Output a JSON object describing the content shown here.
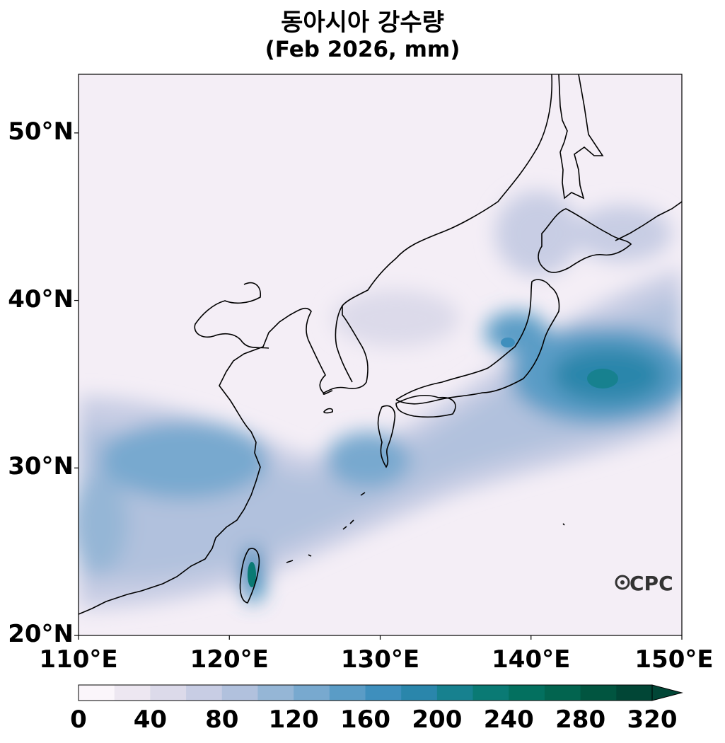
{
  "title": "동아시아 강수량",
  "subtitle": "(Feb 2026, mm)",
  "watermark": "CPC",
  "map": {
    "lon_range": [
      110,
      150
    ],
    "lat_range": [
      20,
      53.5
    ],
    "lat_ticks": [
      {
        "value": 50,
        "label": "50°N"
      },
      {
        "value": 40,
        "label": "40°N"
      },
      {
        "value": 30,
        "label": "30°N"
      },
      {
        "value": 20,
        "label": "20°N"
      }
    ],
    "lon_ticks": [
      {
        "value": 110,
        "label": "110°E"
      },
      {
        "value": 120,
        "label": "120°E"
      },
      {
        "value": 130,
        "label": "130°E"
      },
      {
        "value": 140,
        "label": "140°E"
      },
      {
        "value": 150,
        "label": "150°E"
      }
    ]
  },
  "colorbar": {
    "min": 0,
    "max": 320,
    "step": 20,
    "extend": "max",
    "ticks": [
      {
        "value": 0,
        "label": "0"
      },
      {
        "value": 40,
        "label": "40"
      },
      {
        "value": 80,
        "label": "80"
      },
      {
        "value": 120,
        "label": "120"
      },
      {
        "value": 160,
        "label": "160"
      },
      {
        "value": 200,
        "label": "200"
      },
      {
        "value": 240,
        "label": "240"
      },
      {
        "value": 280,
        "label": "280"
      },
      {
        "value": 320,
        "label": "320"
      }
    ],
    "colors": [
      "#fbf6fb",
      "#ede7f1",
      "#dcdaea",
      "#c8cde4",
      "#b1c1dd",
      "#95b6d6",
      "#78a9cf",
      "#5a9cc6",
      "#3e8fbd",
      "#2a86ab",
      "#17818f",
      "#0a7a74",
      "#03705f",
      "#02644f",
      "#015540",
      "#014636"
    ]
  }
}
